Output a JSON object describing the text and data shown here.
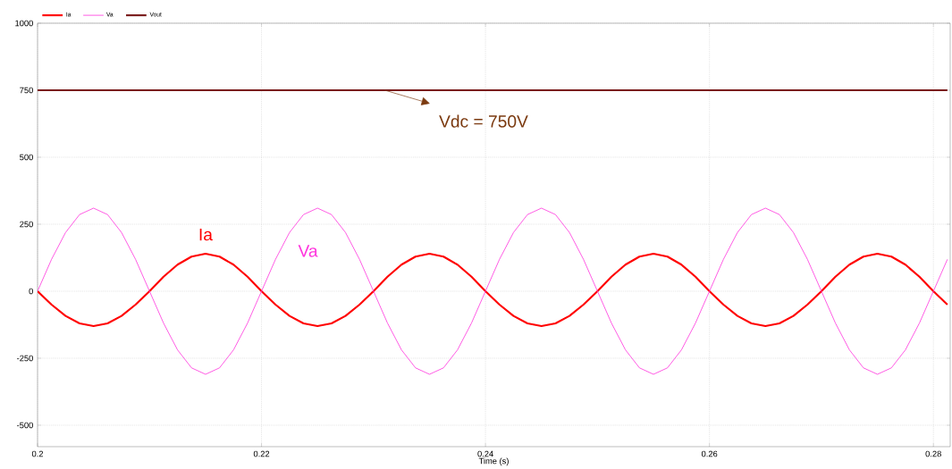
{
  "chart_data": {
    "type": "line",
    "xlabel": "Time (s)",
    "xlim": [
      0.2,
      0.2815
    ],
    "ylim": [
      -580,
      1000
    ],
    "xticks": [
      0.2,
      0.22,
      0.24,
      0.26,
      0.28
    ],
    "yticks": [
      -500,
      -250,
      0,
      250,
      500,
      750,
      1000
    ],
    "grid": true,
    "legend": "top left",
    "line_style": "solid",
    "x": [
      0.2,
      0.20125,
      0.2025,
      0.20375,
      0.205,
      0.20625,
      0.2075,
      0.20875,
      0.21,
      0.21125,
      0.2125,
      0.21375,
      0.215,
      0.21625,
      0.2175,
      0.21875,
      0.22,
      0.22125,
      0.2225,
      0.22375,
      0.225,
      0.22625,
      0.2275,
      0.22875,
      0.23,
      0.23125,
      0.2325,
      0.23375,
      0.235,
      0.23625,
      0.2375,
      0.23875,
      0.24,
      0.24125,
      0.2425,
      0.24375,
      0.245,
      0.24625,
      0.2475,
      0.24875,
      0.25,
      0.25125,
      0.2525,
      0.25375,
      0.255,
      0.25625,
      0.2575,
      0.25875,
      0.26,
      0.26125,
      0.2625,
      0.26375,
      0.265,
      0.26625,
      0.2675,
      0.26875,
      0.27,
      0.27125,
      0.2725,
      0.27375,
      0.275,
      0.27625,
      0.2775,
      0.27875,
      0.28,
      0.28125
    ],
    "series": [
      {
        "name": "Ia",
        "color": "#ff0000",
        "values": [
          0,
          -50,
          -92,
          -120,
          -130,
          -120,
          -92,
          -50,
          0,
          54,
          99,
          129,
          140,
          129,
          99,
          54,
          0,
          -50,
          -92,
          -120,
          -130,
          -120,
          -92,
          -50,
          0,
          54,
          99,
          129,
          140,
          129,
          99,
          54,
          0,
          -50,
          -92,
          -120,
          -130,
          -120,
          -92,
          -50,
          0,
          54,
          99,
          129,
          140,
          129,
          99,
          54,
          0,
          -50,
          -92,
          -120,
          -130,
          -120,
          -92,
          -50,
          0,
          54,
          99,
          129,
          140,
          129,
          99,
          54,
          0,
          -50
        ]
      },
      {
        "name": "Va",
        "color": "#ff33dd",
        "values": [
          0,
          119,
          219,
          286,
          310,
          286,
          219,
          119,
          0,
          -119,
          -219,
          -286,
          -310,
          -286,
          -219,
          -119,
          0,
          119,
          219,
          286,
          310,
          286,
          219,
          119,
          0,
          -119,
          -219,
          -286,
          -310,
          -286,
          -219,
          -119,
          0,
          119,
          219,
          286,
          310,
          286,
          219,
          119,
          0,
          -119,
          -219,
          -286,
          -310,
          -286,
          -219,
          -119,
          0,
          119,
          219,
          286,
          310,
          286,
          219,
          119,
          0,
          -119,
          -219,
          -286,
          -310,
          -286,
          -219,
          -119,
          0,
          119
        ]
      },
      {
        "name": "Vout",
        "color": "#7a1c1c",
        "values": [
          750,
          750,
          750,
          750,
          750,
          750,
          750,
          750,
          750,
          750,
          750,
          750,
          750,
          750,
          750,
          750,
          750,
          750,
          750,
          750,
          750,
          750,
          750,
          750,
          750,
          750,
          750,
          750,
          750,
          750,
          750,
          750,
          750,
          750,
          750,
          750,
          750,
          750,
          750,
          750,
          750,
          750,
          750,
          750,
          750,
          750,
          750,
          750,
          750,
          750,
          750,
          750,
          750,
          750,
          750,
          750,
          750,
          750,
          750,
          750,
          750,
          750,
          750,
          750,
          750,
          750
        ]
      }
    ],
    "annotations": [
      {
        "text": "Vdc = 750V",
        "x": 0.231,
        "y": 750
      }
    ]
  }
}
